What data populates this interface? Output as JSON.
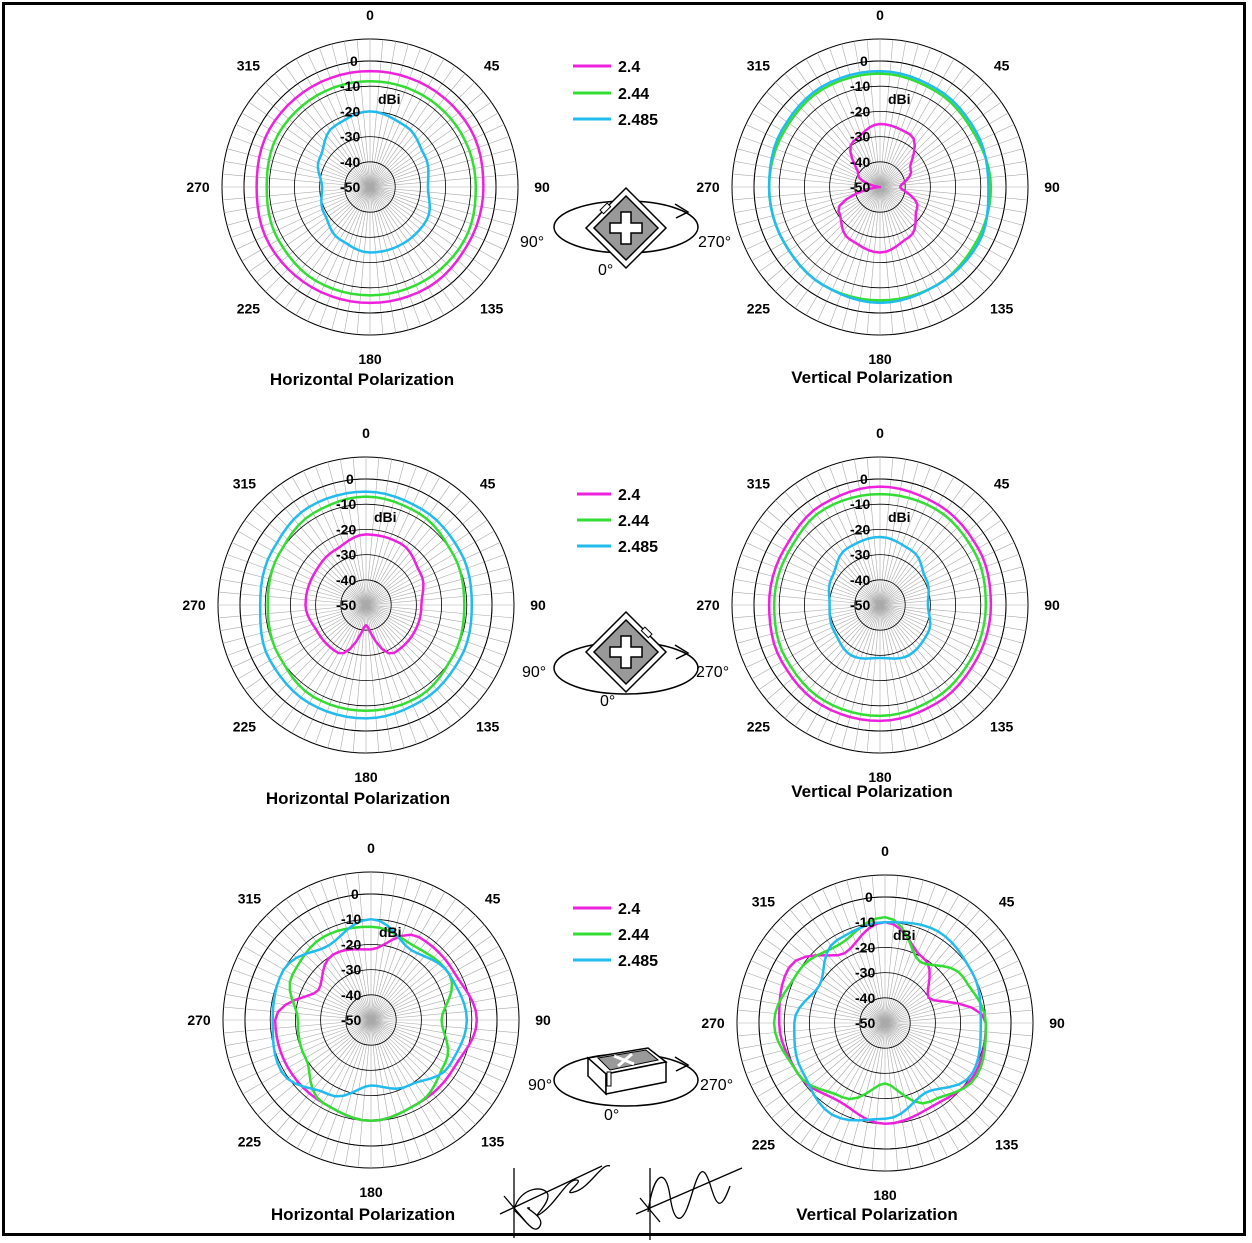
{
  "legend": {
    "entries": [
      {
        "label": "2.4",
        "color": "#ee22dd"
      },
      {
        "label": "2.44",
        "color": "#33dd33"
      },
      {
        "label": "2.485",
        "color": "#22bbee"
      }
    ]
  },
  "orientation_labels": {
    "left": "90°",
    "right": "270°",
    "bottom": "0°"
  },
  "chart_data": [
    {
      "type": "polar",
      "title": "Horizontal Polarization",
      "r_unit": "dBi",
      "r_range": [
        -50,
        0
      ],
      "r_ticks": [
        "0",
        "-10",
        "-20",
        "-30",
        "-40",
        "-50"
      ],
      "angle_ticks": [
        "0",
        "45",
        "90",
        "135",
        "180",
        "225",
        "270",
        "315"
      ],
      "angles": [
        0,
        30,
        60,
        90,
        120,
        150,
        180,
        210,
        240,
        270,
        300,
        330
      ],
      "series": [
        {
          "name": "2.4",
          "values": [
            -4,
            -4,
            -4,
            -5,
            -5,
            -4,
            -4,
            -4,
            -4,
            -5,
            -4,
            -4
          ]
        },
        {
          "name": "2.44",
          "values": [
            -8,
            -8,
            -8,
            -8,
            -7,
            -7,
            -7,
            -7,
            -8,
            -9,
            -8,
            -8
          ]
        },
        {
          "name": "2.485",
          "values": [
            -20,
            -22,
            -25,
            -27,
            -24,
            -24,
            -24,
            -26,
            -29,
            -31,
            -27,
            -22
          ]
        }
      ]
    },
    {
      "type": "polar",
      "title": "Vertical Polarization",
      "r_unit": "dBi",
      "r_range": [
        -50,
        0
      ],
      "r_ticks": [
        "0",
        "-10",
        "-20",
        "-30",
        "-40",
        "-50"
      ],
      "angle_ticks": [
        "0",
        "45",
        "90",
        "135",
        "180",
        "225",
        "270",
        "315"
      ],
      "angles": [
        0,
        30,
        60,
        90,
        120,
        150,
        180,
        210,
        240,
        270,
        300,
        330
      ],
      "series": [
        {
          "name": "2.4",
          "values": [
            -25,
            -26,
            -36,
            -42,
            -33,
            -27,
            -24,
            -26,
            -31,
            -50,
            -40,
            -29
          ]
        },
        {
          "name": "2.44",
          "values": [
            -5,
            -6,
            -7,
            -6,
            -6,
            -5,
            -5,
            -5,
            -6,
            -6,
            -6,
            -5
          ]
        },
        {
          "name": "2.485",
          "values": [
            -4,
            -5,
            -6,
            -7,
            -5,
            -5,
            -4,
            -5,
            -6,
            -6,
            -5,
            -4
          ]
        }
      ]
    },
    {
      "type": "polar",
      "title": "Horizontal Polarization",
      "r_unit": "dBi",
      "r_range": [
        -50,
        0
      ],
      "r_ticks": [
        "0",
        "-10",
        "-20",
        "-30",
        "-40",
        "-50"
      ],
      "angle_ticks": [
        "0",
        "45",
        "90",
        "135",
        "180",
        "225",
        "270",
        "315"
      ],
      "angles": [
        0,
        30,
        60,
        90,
        120,
        150,
        180,
        210,
        240,
        270,
        300,
        330
      ],
      "series": [
        {
          "name": "2.4",
          "values": [
            -22,
            -22,
            -25,
            -28,
            -28,
            -28,
            -42,
            -28,
            -28,
            -26,
            -26,
            -25
          ]
        },
        {
          "name": "2.44",
          "values": [
            -7,
            -8,
            -10,
            -11,
            -10,
            -8,
            -8,
            -8,
            -10,
            -11,
            -10,
            -8
          ]
        },
        {
          "name": "2.485",
          "values": [
            -5,
            -6,
            -7,
            -8,
            -7,
            -6,
            -5,
            -5,
            -6,
            -8,
            -7,
            -5
          ]
        }
      ]
    },
    {
      "type": "polar",
      "title": "Vertical Polarization",
      "r_unit": "dBi",
      "r_range": [
        -50,
        0
      ],
      "r_ticks": [
        "0",
        "-10",
        "-20",
        "-30",
        "-40",
        "-50"
      ],
      "angle_ticks": [
        "0",
        "45",
        "90",
        "135",
        "180",
        "225",
        "270",
        "315"
      ],
      "angles": [
        0,
        30,
        60,
        90,
        120,
        150,
        180,
        210,
        240,
        270,
        300,
        330
      ],
      "series": [
        {
          "name": "2.4",
          "values": [
            -3,
            -4,
            -5,
            -6,
            -6,
            -5,
            -4,
            -4,
            -5,
            -6,
            -6,
            -4
          ]
        },
        {
          "name": "2.44",
          "values": [
            -6,
            -6,
            -7,
            -8,
            -8,
            -7,
            -6,
            -6,
            -7,
            -8,
            -8,
            -6
          ]
        },
        {
          "name": "2.485",
          "values": [
            -23,
            -25,
            -29,
            -31,
            -28,
            -27,
            -29,
            -27,
            -29,
            -30,
            -28,
            -24
          ]
        }
      ]
    },
    {
      "type": "polar",
      "title": "Horizontal Polarization",
      "r_unit": "dBi",
      "r_range": [
        -50,
        0
      ],
      "r_ticks": [
        "0",
        "-10",
        "-20",
        "-30",
        "-40",
        "-50"
      ],
      "angle_ticks": [
        "0",
        "45",
        "90",
        "135",
        "180",
        "225",
        "270",
        "315"
      ],
      "angles": [
        0,
        30,
        60,
        90,
        120,
        150,
        180,
        210,
        240,
        270,
        300,
        330
      ],
      "series": [
        {
          "name": "2.4",
          "values": [
            -22,
            -12,
            -12,
            -8,
            -12,
            -12,
            -10,
            -12,
            -12,
            -12,
            -26,
            -20
          ]
        },
        {
          "name": "2.44",
          "values": [
            -13,
            -16,
            -14,
            -22,
            -16,
            -12,
            -10,
            -12,
            -20,
            -21,
            -14,
            -12
          ]
        },
        {
          "name": "2.485",
          "values": [
            -10,
            -18,
            -14,
            -12,
            -14,
            -20,
            -24,
            -16,
            -9,
            -11,
            -10,
            -16
          ]
        }
      ]
    },
    {
      "type": "polar",
      "title": "Vertical Polarization",
      "r_unit": "dBi",
      "r_range": [
        -50,
        0
      ],
      "r_ticks": [
        "0",
        "-10",
        "-20",
        "-30",
        "-40",
        "-50"
      ],
      "angle_ticks": [
        "0",
        "45",
        "90",
        "135",
        "180",
        "225",
        "270",
        "315"
      ],
      "angles": [
        0,
        30,
        60,
        90,
        120,
        150,
        180,
        210,
        240,
        270,
        300,
        330
      ],
      "series": [
        {
          "name": "2.4",
          "values": [
            -10,
            -20,
            -30,
            -10,
            -9,
            -12,
            -10,
            -14,
            -10,
            -8,
            -6,
            -18
          ]
        },
        {
          "name": "2.44",
          "values": [
            -8,
            -22,
            -14,
            -10,
            -8,
            -14,
            -26,
            -16,
            -10,
            -6,
            -10,
            -14
          ]
        },
        {
          "name": "2.485",
          "values": [
            -10,
            -8,
            -10,
            -12,
            -10,
            -18,
            -12,
            -8,
            -12,
            -14,
            -20,
            -12
          ]
        }
      ]
    }
  ]
}
